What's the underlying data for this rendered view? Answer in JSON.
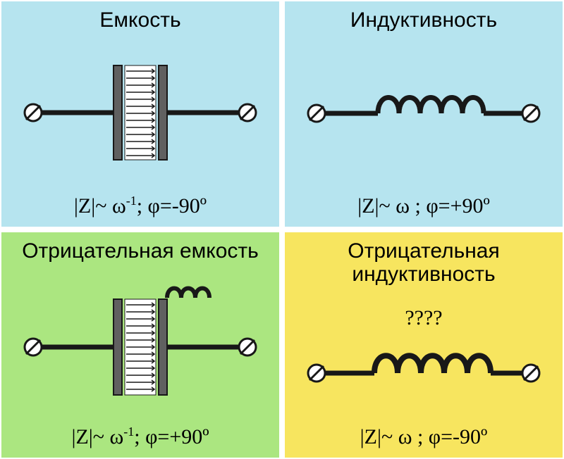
{
  "panels": {
    "capacitance": {
      "title": "Емкость",
      "formula_html": "|Z|~ ω<sup>-1</sup>; φ=-90º",
      "bg": "#b6e4ef",
      "stroke": "#181818",
      "type": "capacitor"
    },
    "inductance": {
      "title": "Индуктивность",
      "formula_html": "|Z|~ ω ; φ=+90º",
      "bg": "#b6e4ef",
      "stroke": "#181818",
      "type": "inductor"
    },
    "neg_capacitance": {
      "title": "Отрицательная емкость",
      "formula_html": "|Z|~ ω<sup>-1</sup>; φ=+90º",
      "bg": "#abe680",
      "stroke": "#181818",
      "type": "capacitor_with_coil"
    },
    "neg_inductance": {
      "title": "Отрицательная индуктивность",
      "question": "????",
      "formula_html": "|Z|~ ω ; φ=-90º",
      "bg": "#f7e55f",
      "stroke": "#181818",
      "type": "inductor"
    }
  },
  "colors": {
    "bg_white": "#ffffff",
    "text": "#000000"
  }
}
